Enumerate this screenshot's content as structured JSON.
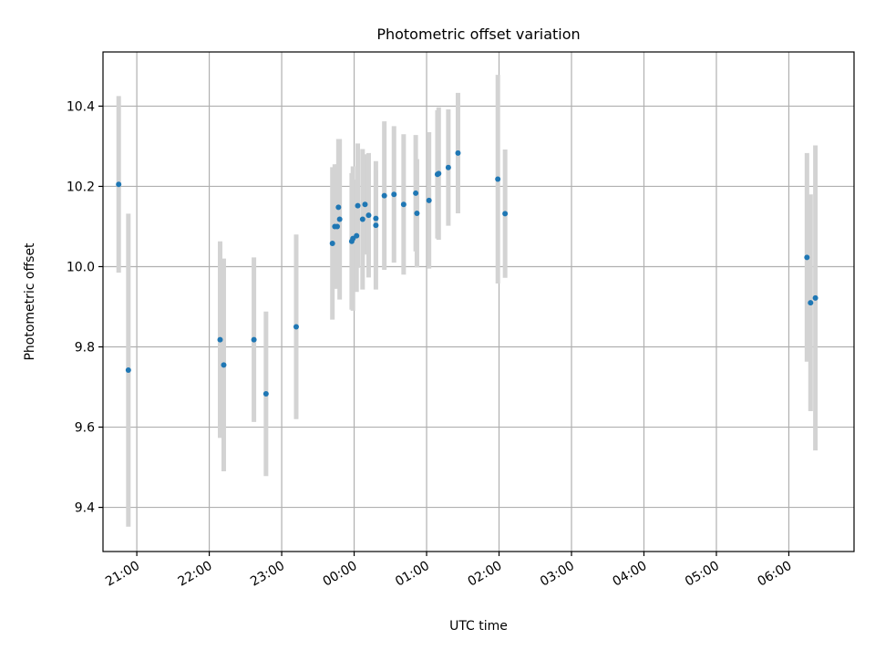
{
  "chart_data": {
    "type": "scatter",
    "title": "Photometric offset variation",
    "xlabel": "UTC time",
    "ylabel": "Photometric offset",
    "xlim": [
      "20:32",
      "06:54"
    ],
    "ylim": [
      9.29,
      10.535
    ],
    "grid": true,
    "x_ticks": [
      "21:00",
      "22:00",
      "23:00",
      "00:00",
      "01:00",
      "02:00",
      "03:00",
      "04:00",
      "05:00",
      "06:00"
    ],
    "y_ticks": [
      9.4,
      9.6,
      9.8,
      10.0,
      10.2,
      10.4
    ],
    "y_tick_labels": [
      "9.4",
      "9.6",
      "9.8",
      "10.0",
      "10.2",
      "10.4"
    ],
    "point_color": "#1f77b4",
    "errorbar_color": "#d3d3d3",
    "points": [
      {
        "x": "20:45",
        "y": 10.205,
        "err": 0.22
      },
      {
        "x": "20:53",
        "y": 9.742,
        "err": 0.39
      },
      {
        "x": "22:09",
        "y": 9.818,
        "err": 0.245
      },
      {
        "x": "22:12",
        "y": 9.755,
        "err": 0.265
      },
      {
        "x": "22:37",
        "y": 9.818,
        "err": 0.205
      },
      {
        "x": "22:47",
        "y": 9.683,
        "err": 0.205
      },
      {
        "x": "23:12",
        "y": 9.85,
        "err": 0.23
      },
      {
        "x": "23:42",
        "y": 10.058,
        "err": 0.19
      },
      {
        "x": "23:44",
        "y": 10.1,
        "err": 0.155
      },
      {
        "x": "23:46",
        "y": 10.1,
        "err": 0.155
      },
      {
        "x": "23:47",
        "y": 10.148,
        "err": 0.17
      },
      {
        "x": "23:48",
        "y": 10.118,
        "err": 0.2
      },
      {
        "x": "23:58",
        "y": 10.063,
        "err": 0.17
      },
      {
        "x": "23:59",
        "y": 10.07,
        "err": 0.18
      },
      {
        "x": "00:02",
        "y": 10.077,
        "err": 0.14
      },
      {
        "x": "00:03",
        "y": 10.152,
        "err": 0.155
      },
      {
        "x": "00:07",
        "y": 10.118,
        "err": 0.175
      },
      {
        "x": "00:09",
        "y": 10.155,
        "err": 0.125
      },
      {
        "x": "00:12",
        "y": 10.128,
        "err": 0.155
      },
      {
        "x": "00:18",
        "y": 10.12,
        "err": 0.12
      },
      {
        "x": "00:18",
        "y": 10.103,
        "err": 0.16
      },
      {
        "x": "00:25",
        "y": 10.177,
        "err": 0.185
      },
      {
        "x": "00:33",
        "y": 10.18,
        "err": 0.17
      },
      {
        "x": "00:41",
        "y": 10.155,
        "err": 0.175
      },
      {
        "x": "00:51",
        "y": 10.183,
        "err": 0.145
      },
      {
        "x": "00:52",
        "y": 10.133,
        "err": 0.135
      },
      {
        "x": "01:02",
        "y": 10.165,
        "err": 0.17
      },
      {
        "x": "01:09",
        "y": 10.23,
        "err": 0.16
      },
      {
        "x": "01:10",
        "y": 10.232,
        "err": 0.165
      },
      {
        "x": "01:18",
        "y": 10.247,
        "err": 0.145
      },
      {
        "x": "01:26",
        "y": 10.283,
        "err": 0.15
      },
      {
        "x": "01:59",
        "y": 10.218,
        "err": 0.26
      },
      {
        "x": "02:05",
        "y": 10.132,
        "err": 0.16
      },
      {
        "x": "06:15",
        "y": 10.023,
        "err": 0.26
      },
      {
        "x": "06:18",
        "y": 9.91,
        "err": 0.27
      },
      {
        "x": "06:22",
        "y": 9.922,
        "err": 0.38
      }
    ]
  }
}
